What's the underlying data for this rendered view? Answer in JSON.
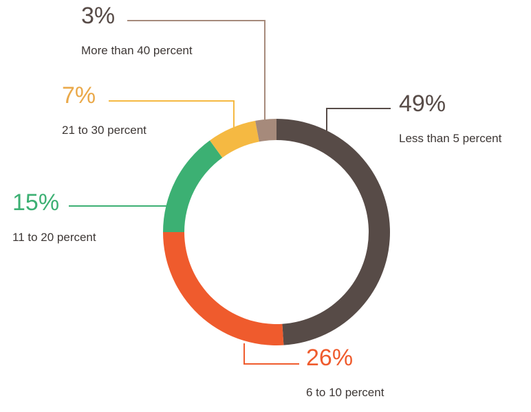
{
  "chart_data": {
    "type": "donut",
    "categories": [
      "Less than 5 percent",
      "6 to 10 percent",
      "11 to 20 percent",
      "21 to 30 percent",
      "More than 40 percent"
    ],
    "values": [
      49,
      26,
      15,
      7,
      3
    ],
    "value_labels": [
      "49%",
      "26%",
      "15%",
      "7%",
      "3%"
    ],
    "colors": [
      "#574b47",
      "#ef5b2d",
      "#3cb073",
      "#f5b942",
      "#a68a7b"
    ],
    "label_colors": [
      "#574b47",
      "#ef5b2d",
      "#3cb073",
      "#eaa94a",
      "#574b47"
    ]
  }
}
